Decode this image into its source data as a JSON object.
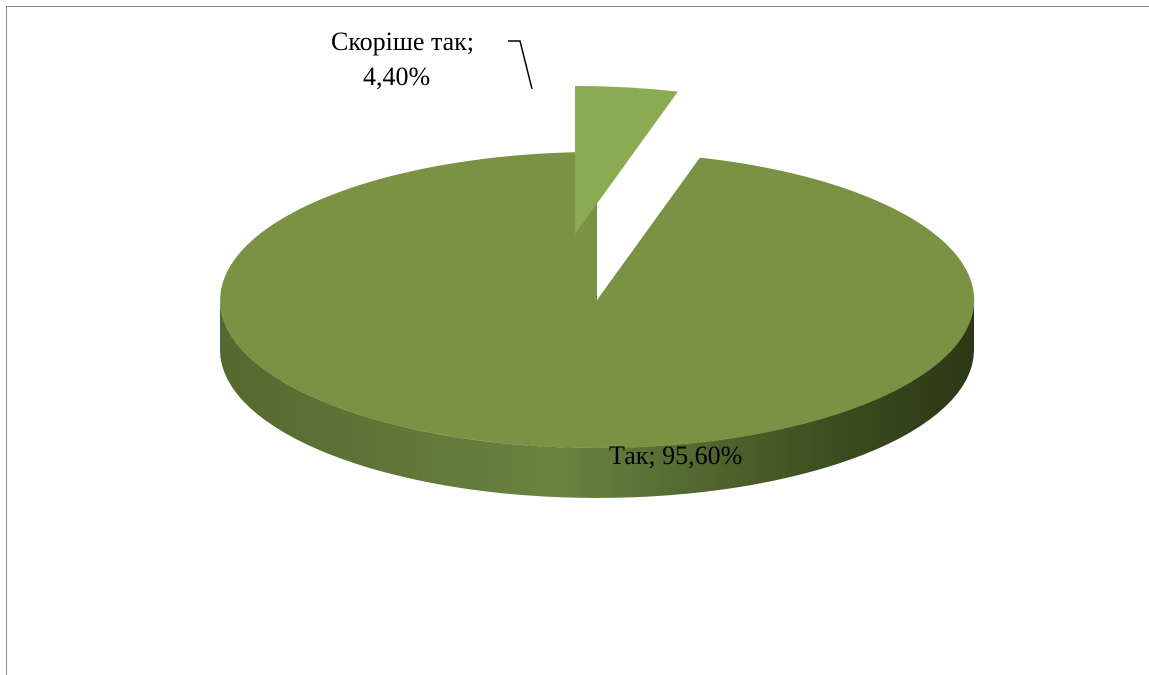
{
  "chart_data": {
    "type": "pie",
    "style": "3d-exploded",
    "title": "",
    "categories": [
      "Так",
      "Скоріше так"
    ],
    "values": [
      95.6,
      4.4
    ],
    "unit": "%",
    "data_labels": [
      {
        "line1": "Так; 95,60%",
        "line2": ""
      },
      {
        "line1": "Скоріше так;",
        "line2": "4,40%"
      }
    ],
    "legend": "none",
    "colors": {
      "top": "#7b9244",
      "side_light": "#6e8840",
      "side_dark": "#2f3e18",
      "slice_top": "#8aab51",
      "slice_side": "#3d5120",
      "frame": "#8c8c8c"
    }
  }
}
